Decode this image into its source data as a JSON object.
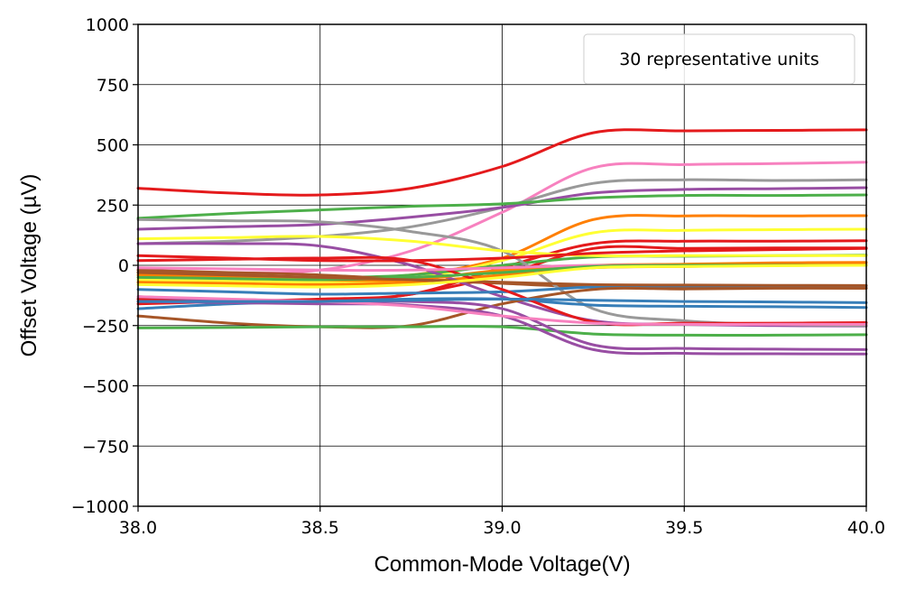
{
  "chart_data": {
    "type": "line",
    "title": "",
    "xlabel": "Common-Mode Voltage(V)",
    "ylabel": "Offset Voltage (µV)",
    "xlim": [
      38.0,
      40.0
    ],
    "ylim": [
      -1000,
      1000
    ],
    "x_ticks": [
      38.0,
      38.5,
      39.0,
      39.5,
      40.0
    ],
    "x_tick_labels": [
      "38.0",
      "38.5",
      "39.0",
      "39.5",
      "40.0"
    ],
    "y_ticks": [
      1000,
      750,
      500,
      250,
      0,
      -250,
      -500,
      -750,
      -1000
    ],
    "y_tick_labels": [
      "1000",
      "750",
      "500",
      "250",
      "0",
      "−250",
      "−500",
      "−750",
      "−1000"
    ],
    "grid": true,
    "legend": {
      "text": "30 representative units",
      "placement": "top-right"
    },
    "x": [
      38.0,
      38.25,
      38.5,
      38.75,
      39.0,
      39.25,
      39.5,
      39.75,
      40.0
    ],
    "series": [
      {
        "color": "#e41a1c",
        "values": [
          320,
          300,
          292,
          320,
          410,
          550,
          558,
          560,
          562
        ]
      },
      {
        "color": "#f781bf",
        "values": [
          -20,
          -30,
          -20,
          60,
          220,
          405,
          418,
          422,
          428
        ]
      },
      {
        "color": "#999999",
        "values": [
          90,
          100,
          120,
          160,
          240,
          340,
          355,
          352,
          355
        ]
      },
      {
        "color": "#984ea3",
        "values": [
          150,
          160,
          170,
          200,
          240,
          300,
          315,
          318,
          322
        ]
      },
      {
        "color": "#4daf4a",
        "values": [
          195,
          215,
          230,
          245,
          255,
          280,
          290,
          290,
          292
        ]
      },
      {
        "color": "#ff7f00",
        "values": [
          -30,
          -40,
          -50,
          -40,
          30,
          190,
          205,
          205,
          206
        ]
      },
      {
        "color": "#ffff33",
        "values": [
          -60,
          -65,
          -70,
          -55,
          20,
          135,
          145,
          148,
          150
        ]
      },
      {
        "color": "#e41a1c",
        "values": [
          -160,
          -150,
          -140,
          -120,
          -10,
          90,
          100,
          100,
          102
        ]
      },
      {
        "color": "#e41a1c",
        "values": [
          -140,
          -150,
          -155,
          -120,
          -40,
          70,
          70,
          72,
          72
        ]
      },
      {
        "color": "#4daf4a",
        "values": [
          -30,
          -40,
          -50,
          -40,
          0,
          35,
          38,
          40,
          42
        ]
      },
      {
        "color": "#ff7f00",
        "values": [
          -70,
          -75,
          -80,
          -70,
          -40,
          -10,
          -5,
          0,
          2
        ]
      },
      {
        "color": "#a65628",
        "values": [
          -20,
          -30,
          -40,
          -60,
          -75,
          -90,
          -92,
          -94,
          -95
        ]
      },
      {
        "color": "#984ea3",
        "values": [
          90,
          90,
          80,
          0,
          -130,
          -230,
          -245,
          -250,
          -252
        ]
      },
      {
        "color": "#999999",
        "values": [
          190,
          185,
          180,
          140,
          60,
          -180,
          -230,
          -245,
          -250
        ]
      },
      {
        "color": "#377eb8",
        "values": [
          -100,
          -110,
          -120,
          -115,
          -110,
          -90,
          -85,
          -85,
          -85
        ]
      },
      {
        "color": "#377eb8",
        "values": [
          -180,
          -160,
          -150,
          -140,
          -140,
          -165,
          -170,
          -172,
          -175
        ]
      },
      {
        "color": "#a65628",
        "values": [
          -210,
          -240,
          -255,
          -250,
          -160,
          -100,
          -98,
          -95,
          -95
        ]
      },
      {
        "color": "#4daf4a",
        "values": [
          -260,
          -258,
          -255,
          -255,
          -255,
          -285,
          -290,
          -290,
          -288
        ]
      },
      {
        "color": "#984ea3",
        "values": [
          -130,
          -145,
          -155,
          -150,
          -180,
          -330,
          -345,
          -348,
          -350
        ]
      },
      {
        "color": "#984ea3",
        "values": [
          -150,
          -155,
          -160,
          -165,
          -210,
          -350,
          -365,
          -367,
          -368
        ]
      },
      {
        "color": "#e41a1c",
        "values": [
          20,
          25,
          30,
          20,
          -100,
          -235,
          -240,
          -240,
          -238
        ]
      },
      {
        "color": "#f781bf",
        "values": [
          -130,
          -140,
          -150,
          -170,
          -210,
          -240,
          -245,
          -245,
          -245
        ]
      },
      {
        "color": "#ffff33",
        "values": [
          110,
          115,
          120,
          100,
          60,
          40,
          40,
          40,
          40
        ]
      },
      {
        "color": "#ff7f00",
        "values": [
          -40,
          -50,
          -60,
          -60,
          -20,
          0,
          5,
          10,
          12
        ]
      },
      {
        "color": "#f781bf",
        "values": [
          -10,
          -15,
          -20,
          -20,
          -10,
          0,
          0,
          0,
          0
        ]
      },
      {
        "color": "#e41a1c",
        "values": [
          40,
          30,
          20,
          20,
          30,
          50,
          60,
          65,
          70
        ]
      },
      {
        "color": "#4daf4a",
        "values": [
          -50,
          -55,
          -60,
          -50,
          -30,
          -5,
          0,
          0,
          0
        ]
      },
      {
        "color": "#a65628",
        "values": [
          -30,
          -40,
          -50,
          -60,
          -70,
          -80,
          -82,
          -83,
          -84
        ]
      },
      {
        "color": "#377eb8",
        "values": [
          -150,
          -150,
          -150,
          -145,
          -140,
          -145,
          -150,
          -152,
          -155
        ]
      },
      {
        "color": "#ffff33",
        "values": [
          -80,
          -85,
          -90,
          -80,
          -50,
          -10,
          -5,
          -2,
          0
        ]
      }
    ]
  }
}
